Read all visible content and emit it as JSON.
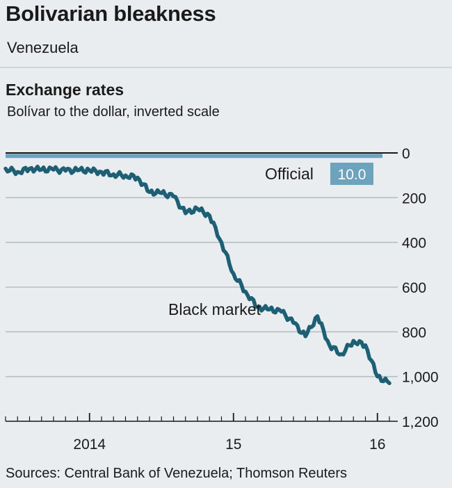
{
  "header": {
    "title": "Bolivarian bleakness",
    "subtitle": "Venezuela"
  },
  "chart_data": {
    "type": "line",
    "title": "Exchange rates",
    "subtitle": "Bolívar to the dollar, inverted scale",
    "y_inverted": true,
    "ylim": [
      0,
      1200
    ],
    "yticks": [
      0,
      200,
      400,
      600,
      800,
      1000,
      1200
    ],
    "ytick_labels": [
      "0",
      "200",
      "400",
      "600",
      "800",
      "1,000",
      "1,200"
    ],
    "xlim": [
      "2013-06",
      "2016-02"
    ],
    "xtick_labels": [
      {
        "label": "2014",
        "date": "2014-01"
      },
      {
        "label": "15",
        "date": "2015-01"
      },
      {
        "label": "16",
        "date": "2016-01"
      }
    ],
    "grid": true,
    "series": [
      {
        "name": "Official",
        "color": "#6da3bd",
        "latest_label": "10.0",
        "x": [
          "2013-06",
          "2016-02"
        ],
        "values": [
          10,
          10
        ]
      },
      {
        "name": "Black market",
        "color": "#1d5f74",
        "x": [
          "2013-06",
          "2013-07",
          "2013-08",
          "2013-09",
          "2013-10",
          "2013-11",
          "2013-12",
          "2014-01",
          "2014-02",
          "2014-03",
          "2014-04",
          "2014-05",
          "2014-06",
          "2014-07",
          "2014-08",
          "2014-09",
          "2014-10",
          "2014-11",
          "2014-12",
          "2015-01",
          "2015-02",
          "2015-03",
          "2015-04",
          "2015-05",
          "2015-06",
          "2015-07",
          "2015-08",
          "2015-09",
          "2015-10",
          "2015-11",
          "2015-12",
          "2016-01",
          "2016-02"
        ],
        "values": [
          70,
          85,
          70,
          75,
          75,
          80,
          78,
          78,
          85,
          95,
          100,
          110,
          175,
          180,
          195,
          270,
          250,
          280,
          400,
          540,
          620,
          690,
          700,
          710,
          760,
          820,
          730,
          860,
          900,
          840,
          860,
          1000,
          1030
        ]
      }
    ]
  },
  "source": "Sources: Central Bank of Venezuela; Thomson Reuters"
}
